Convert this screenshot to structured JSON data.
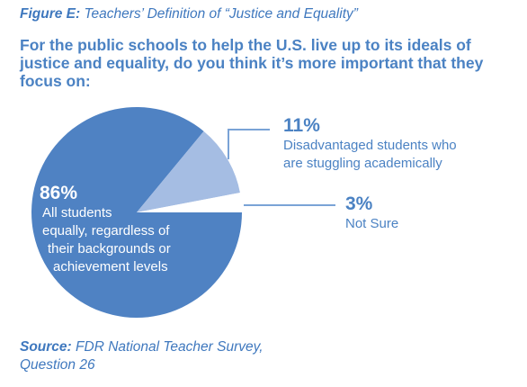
{
  "figure": {
    "label_prefix": "Figure E:",
    "label_title": "Teachers’ Definition of “Justice and Equality”"
  },
  "question": "For the public schools to help the U.S. live up to its ideals of justice and equality, do you think it’s more important that they focus on:",
  "source": {
    "prefix": "Source:",
    "line1": "FDR National Teacher Survey,",
    "line2": "Question 26"
  },
  "colors": {
    "main_slice": "#4f82c3",
    "secondary_slice": "#a5bde3",
    "small_slice": "#ffffff",
    "text_blue": "#4b82c3",
    "leader_line": "#7aa3d6"
  },
  "chart_data": {
    "type": "pie",
    "title": "Teachers’ Definition of “Justice and Equality”",
    "slices": [
      {
        "label": "All students equally, regardless of their backgrounds or achievement levels",
        "value": 86,
        "value_label": "86%",
        "label_lines": [
          "All students",
          "equally, regardless of",
          "their backgrounds or",
          "achievement levels"
        ]
      },
      {
        "label": "Disadvantaged students who are stuggling academically",
        "value": 11,
        "value_label": "11%",
        "label_lines": [
          "Disadvantaged students who",
          "are stuggling academically"
        ]
      },
      {
        "label": "Not Sure",
        "value": 3,
        "value_label": "3%",
        "label_lines": [
          "Not Sure"
        ]
      }
    ]
  }
}
